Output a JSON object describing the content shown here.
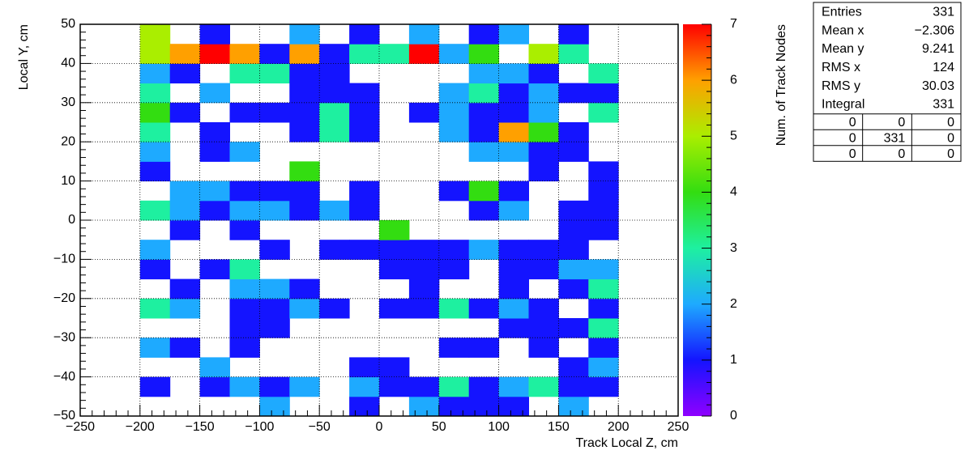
{
  "chart_data": {
    "type": "heatmap",
    "x_label": "Track Local Z, cm",
    "y_label": "Local Y, cm",
    "z_label": "Num. of Track Nodes",
    "xlim": [
      -250,
      250
    ],
    "ylim": [
      -50,
      50
    ],
    "zlim": [
      0,
      7
    ],
    "xticks": [
      {
        "value": -250,
        "label": "−250"
      },
      {
        "value": -200,
        "label": "−200"
      },
      {
        "value": -150,
        "label": "−150"
      },
      {
        "value": -100,
        "label": "−100"
      },
      {
        "value": -50,
        "label": "−50"
      },
      0,
      50,
      100,
      150,
      200,
      250
    ],
    "yticks": [
      {
        "value": -50,
        "label": "−50"
      },
      {
        "value": -40,
        "label": "−40"
      },
      {
        "value": -30,
        "label": "−30"
      },
      {
        "value": -20,
        "label": "−20"
      },
      {
        "value": -10,
        "label": "−10"
      },
      0,
      10,
      20,
      30,
      40,
      50
    ],
    "zticks": [
      0,
      1,
      2,
      3,
      4,
      5,
      6,
      7
    ],
    "grid": true,
    "colorscale": [
      "#8f00ff",
      "#1414ff",
      "#1eaaff",
      "#1ef0a0",
      "#33dd11",
      "#aaee00",
      "#ffa000",
      "#ff0000"
    ],
    "xbins": [
      -200,
      -175,
      -150,
      -125,
      -100,
      -75,
      -50,
      -25,
      0,
      25,
      50,
      75,
      100,
      125,
      150,
      175,
      200
    ],
    "ybins": [
      -50,
      -45,
      -40,
      -35,
      -30,
      -25,
      -20,
      -15,
      -10,
      -5,
      0,
      5,
      10,
      15,
      20,
      25,
      30,
      35,
      40,
      45,
      50
    ],
    "values": [
      [
        0,
        0,
        0,
        0,
        2,
        0,
        0,
        1,
        0,
        2,
        1,
        1,
        1,
        0,
        2,
        0
      ],
      [
        1,
        0,
        1,
        2,
        1,
        2,
        0,
        2,
        1,
        1,
        3,
        1,
        2,
        3,
        1,
        1
      ],
      [
        0,
        0,
        2,
        0,
        0,
        0,
        0,
        1,
        1,
        0,
        0,
        0,
        0,
        0,
        1,
        2
      ],
      [
        2,
        1,
        0,
        1,
        0,
        0,
        0,
        0,
        0,
        0,
        1,
        1,
        0,
        1,
        0,
        1
      ],
      [
        0,
        0,
        0,
        1,
        1,
        0,
        0,
        0,
        0,
        0,
        0,
        0,
        1,
        1,
        1,
        3
      ],
      [
        3,
        2,
        0,
        1,
        1,
        2,
        1,
        0,
        1,
        1,
        3,
        1,
        2,
        1,
        0,
        1
      ],
      [
        0,
        1,
        0,
        2,
        2,
        1,
        0,
        0,
        0,
        1,
        0,
        0,
        1,
        0,
        1,
        3
      ],
      [
        1,
        0,
        1,
        3,
        0,
        0,
        0,
        0,
        1,
        1,
        1,
        0,
        1,
        1,
        2,
        2
      ],
      [
        2,
        0,
        0,
        0,
        1,
        0,
        1,
        1,
        1,
        1,
        1,
        2,
        1,
        1,
        1,
        0
      ],
      [
        0,
        1,
        0,
        1,
        0,
        0,
        0,
        0,
        4,
        0,
        0,
        0,
        0,
        0,
        1,
        1
      ],
      [
        3,
        2,
        1,
        2,
        2,
        1,
        2,
        1,
        0,
        0,
        0,
        1,
        2,
        0,
        1,
        1
      ],
      [
        0,
        2,
        2,
        1,
        1,
        1,
        0,
        1,
        0,
        0,
        1,
        4,
        1,
        0,
        0,
        1
      ],
      [
        1,
        0,
        0,
        0,
        0,
        4,
        0,
        0,
        0,
        0,
        0,
        0,
        0,
        1,
        0,
        1
      ],
      [
        2,
        0,
        1,
        2,
        0,
        0,
        0,
        0,
        0,
        0,
        0,
        2,
        2,
        1,
        1,
        0
      ],
      [
        3,
        0,
        1,
        0,
        0,
        1,
        3,
        1,
        0,
        0,
        2,
        1,
        6,
        4,
        1,
        0
      ],
      [
        4,
        1,
        0,
        1,
        1,
        1,
        3,
        1,
        0,
        1,
        2,
        1,
        1,
        2,
        0,
        3
      ],
      [
        3,
        0,
        2,
        0,
        0,
        1,
        1,
        1,
        0,
        0,
        2,
        3,
        1,
        2,
        1,
        1
      ],
      [
        2,
        1,
        0,
        3,
        3,
        1,
        1,
        0,
        0,
        0,
        0,
        2,
        2,
        1,
        0,
        3
      ],
      [
        5,
        6,
        7,
        6,
        1,
        6,
        1,
        3,
        3,
        7,
        2,
        4,
        0,
        5,
        3,
        0
      ],
      [
        5,
        0,
        1,
        0,
        0,
        2,
        0,
        1,
        0,
        2,
        0,
        1,
        2,
        0,
        1,
        0
      ]
    ],
    "stats": {
      "rows": [
        [
          "Entries",
          "331"
        ],
        [
          "Mean x",
          "−2.306"
        ],
        [
          "Mean y",
          "9.241"
        ],
        [
          "RMS x",
          "124"
        ],
        [
          "RMS y",
          "30.03"
        ],
        [
          "Integral",
          "331"
        ]
      ],
      "grid": [
        [
          "0",
          "0",
          "0"
        ],
        [
          "0",
          "331",
          "0"
        ],
        [
          "0",
          "0",
          "0"
        ]
      ]
    }
  }
}
